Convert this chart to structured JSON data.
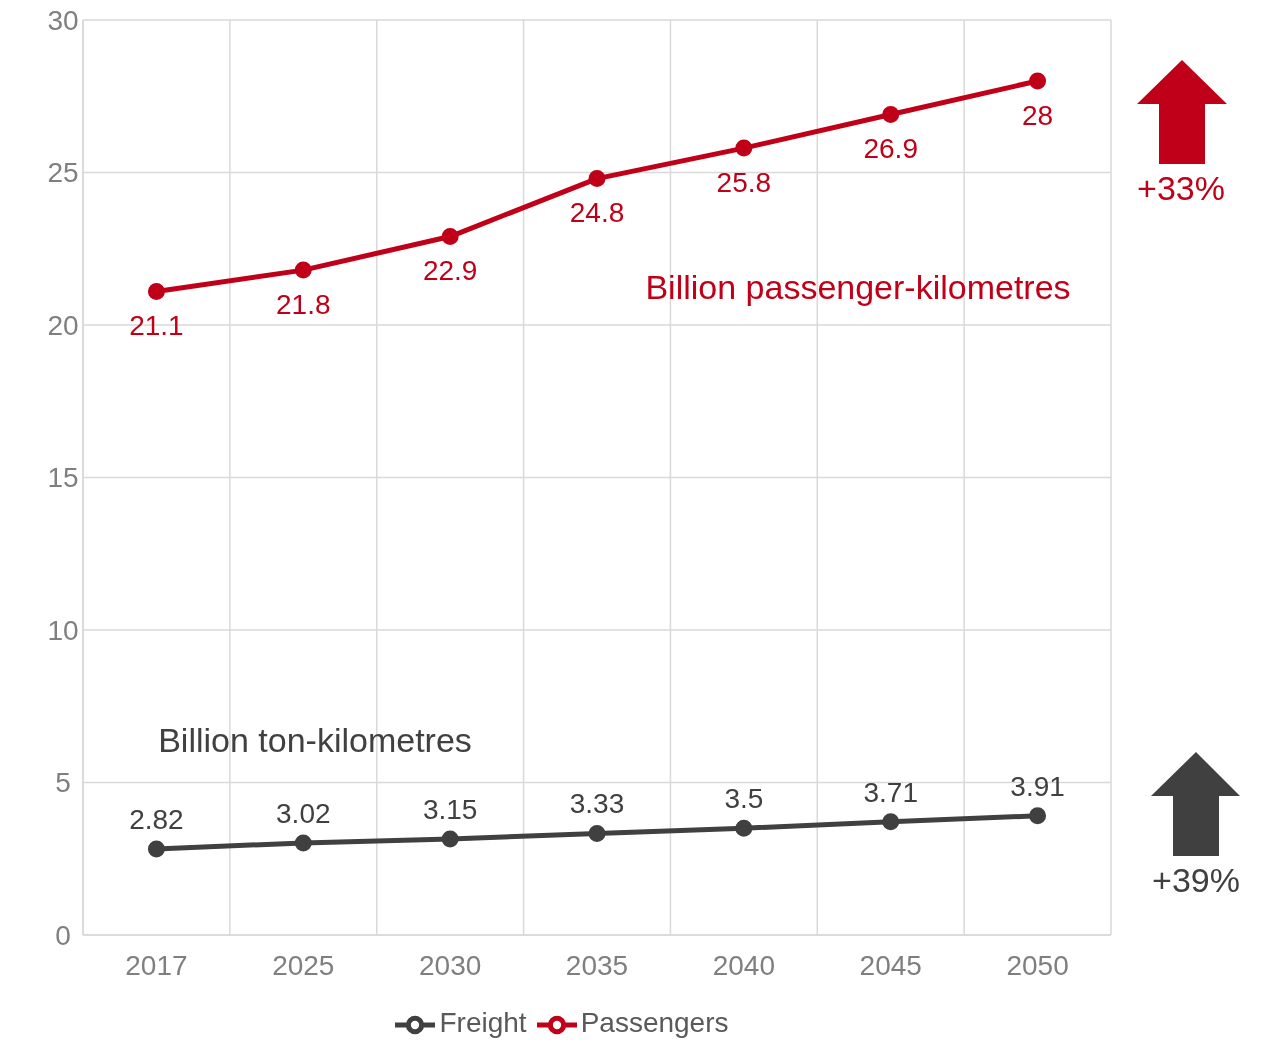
{
  "chart_data": {
    "type": "line",
    "categories": [
      "2017",
      "2025",
      "2030",
      "2035",
      "2040",
      "2045",
      "2050"
    ],
    "series": [
      {
        "name": "Freight",
        "color": "#404040",
        "values": [
          2.82,
          3.02,
          3.15,
          3.33,
          3.5,
          3.71,
          3.91
        ]
      },
      {
        "name": "Passengers",
        "color": "#c00018",
        "values": [
          21.1,
          21.8,
          22.9,
          24.8,
          25.8,
          26.9,
          28
        ]
      }
    ],
    "ylim": [
      0,
      30
    ],
    "yticks": [
      0,
      5,
      10,
      15,
      20,
      25,
      30
    ],
    "grid": true,
    "legend": "bottom",
    "marker": "circle",
    "line_style": "solid",
    "data_labels": true,
    "annotations": [
      "Billion passenger-kilometres",
      "Billion ton-kilometres",
      "+33%",
      "+39%"
    ]
  }
}
